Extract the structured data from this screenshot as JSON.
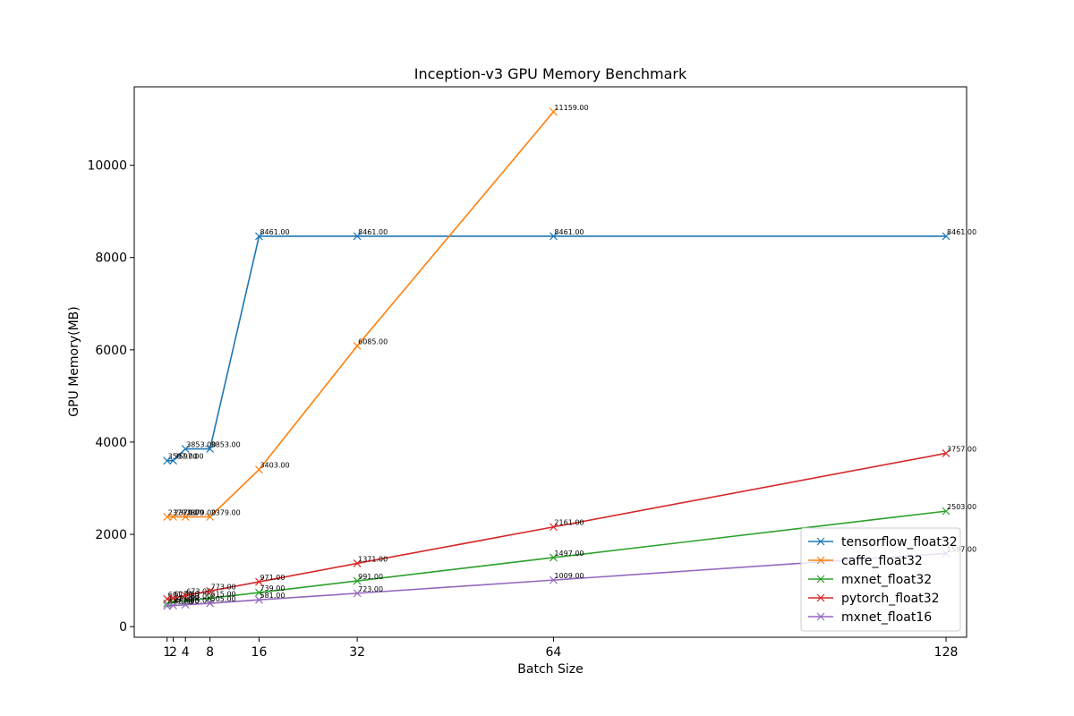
{
  "chart_data": {
    "type": "line",
    "title": "Inception-v3 GPU Memory Benchmark",
    "xlabel": "Batch Size",
    "ylabel": "GPU Memory(MB)",
    "xlim": [
      -4.35,
      131.35
    ],
    "ylim": [
      -230,
      11700
    ],
    "xticks": [
      1,
      2,
      4,
      8,
      16,
      32,
      64,
      128
    ],
    "yticks": [
      0,
      2000,
      4000,
      6000,
      8000,
      10000
    ],
    "grid": false,
    "legend_position": "lower right",
    "marker": "x",
    "label_format": "2 decimals",
    "series": [
      {
        "name": "tensorflow_float32",
        "color": "#1f77b4",
        "x": [
          1,
          2,
          4,
          8,
          16,
          32,
          64,
          128
        ],
        "values": [
          3597,
          3597,
          3853,
          3853,
          8461,
          8461,
          8461,
          8461
        ]
      },
      {
        "name": "caffe_float32",
        "color": "#ff7f0e",
        "x": [
          1,
          2,
          4,
          8,
          16,
          32,
          64
        ],
        "values": [
          2379,
          2379,
          2379,
          2379,
          3403,
          6085,
          11159
        ]
      },
      {
        "name": "mxnet_float32",
        "color": "#2ca02c",
        "x": [
          1,
          2,
          4,
          8,
          16,
          32,
          64,
          128
        ],
        "values": [
          499,
          531,
          563,
          615,
          739,
          991,
          1497,
          2503
        ]
      },
      {
        "name": "pytorch_float32",
        "color": "#d62728",
        "x": [
          1,
          2,
          4,
          8,
          16,
          32,
          64,
          128
        ],
        "values": [
          601,
          617,
          673,
          773,
          971,
          1371,
          2161,
          3757
        ]
      },
      {
        "name": "mxnet_float16",
        "color": "#9467bd",
        "x": [
          1,
          2,
          4,
          8,
          16,
          32,
          64,
          128
        ],
        "values": [
          447,
          457,
          475,
          505,
          581,
          723,
          1009,
          1587
        ]
      }
    ]
  }
}
